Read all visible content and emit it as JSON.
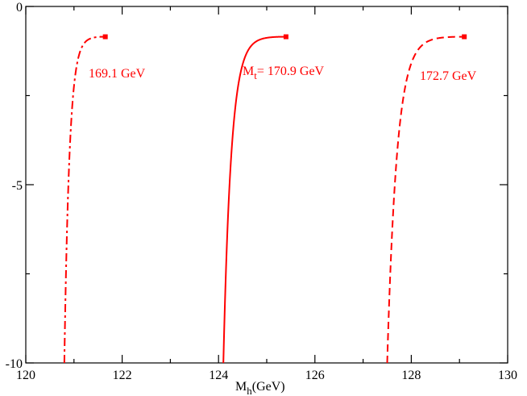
{
  "chart_data": {
    "type": "line",
    "title": "",
    "xlabel_main": "M",
    "xlabel_sub": "h",
    "xlabel_tail": "(GeV)",
    "ylabel": "",
    "xlim": [
      120,
      130
    ],
    "ylim": [
      -10,
      0
    ],
    "x_ticks": [
      "120",
      "122",
      "124",
      "126",
      "128",
      "130"
    ],
    "x_tick_values": [
      120,
      122,
      124,
      126,
      128,
      130
    ],
    "y_ticks": [
      "-10",
      "-5",
      "0"
    ],
    "y_tick_values": [
      -10,
      -5,
      0
    ],
    "grid": false,
    "legend": "none",
    "series_color": "#ff0000",
    "series": [
      {
        "name": "169.1 GeV",
        "style": "dash-dot",
        "x0": 120.8,
        "x_end": 121.65,
        "y_end": -0.85
      },
      {
        "name": "170.9 GeV",
        "style": "solid",
        "x0": 124.1,
        "x_end": 125.4,
        "y_end": -0.85
      },
      {
        "name": "172.7 GeV",
        "style": "dashed",
        "x0": 127.5,
        "x_end": 129.1,
        "y_end": -0.85
      }
    ],
    "annotations": [
      {
        "text": "169.1 GeV"
      },
      {
        "text_main": "M",
        "text_sub": "t",
        "text_tail": "= 170.9 GeV"
      },
      {
        "text": "172.7 GeV"
      }
    ]
  }
}
